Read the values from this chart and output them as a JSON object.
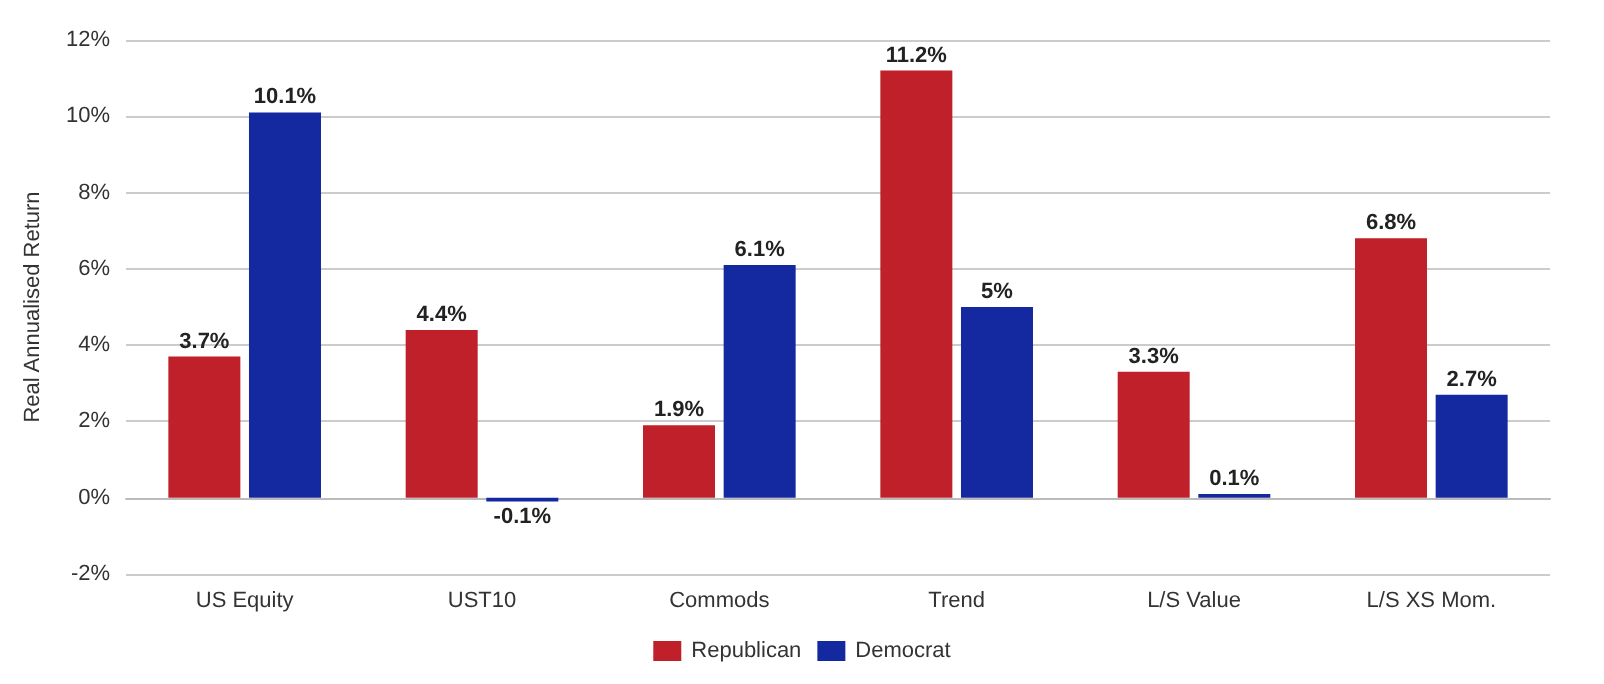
{
  "chart_data": {
    "type": "bar",
    "ylabel": "Real Annualised Return",
    "categories": [
      "US Equity",
      "UST10",
      "Commods",
      "Trend",
      "L/S Value",
      "L/S XS Mom."
    ],
    "series": [
      {
        "name": "Republican",
        "color": "#c0202a",
        "values": [
          3.7,
          4.4,
          1.9,
          11.2,
          3.3,
          6.8
        ],
        "value_labels": [
          "3.7%",
          "4.4%",
          "1.9%",
          "11.2%",
          "3.3%",
          "6.8%"
        ]
      },
      {
        "name": "Democrat",
        "color": "#1428a0",
        "values": [
          10.1,
          -0.1,
          6.1,
          5,
          0.1,
          2.7
        ],
        "value_labels": [
          "10.1%",
          "-0.1%",
          "6.1%",
          "5%",
          "0.1%",
          "2.7%"
        ]
      }
    ],
    "ylim": [
      -2,
      12
    ],
    "yticks": [
      {
        "value": -2,
        "label": "-2%"
      },
      {
        "value": 0,
        "label": "0%"
      },
      {
        "value": 2,
        "label": "2%"
      },
      {
        "value": 4,
        "label": "4%"
      },
      {
        "value": 6,
        "label": "6%"
      },
      {
        "value": 8,
        "label": "8%"
      },
      {
        "value": 10,
        "label": "10%"
      },
      {
        "value": 12,
        "label": "12%"
      }
    ],
    "grid": "y",
    "legend": "bottom"
  }
}
